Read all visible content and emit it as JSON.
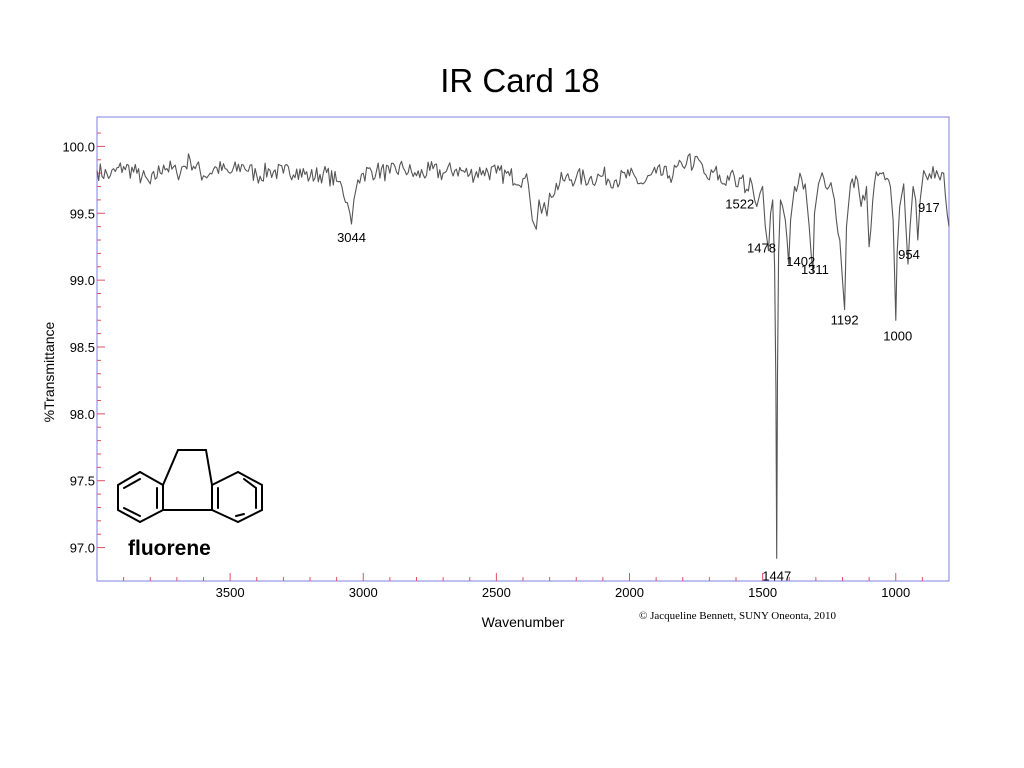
{
  "slide": {
    "title": "IR Card 18",
    "compound": "fluorene",
    "copyright": "© Jacqueline Bennett, SUNY Oneonta, 2010"
  },
  "colors": {
    "frame": "#7f7fe0",
    "tick": "#e05060",
    "trace": "#555555",
    "structure": "#000000"
  },
  "chart_data": {
    "type": "line",
    "title": "",
    "xlabel": "Wavenumber",
    "ylabel": "%Transmittance",
    "xlim": [
      4000,
      800
    ],
    "ylim": [
      96.75,
      100.22
    ],
    "x_reversed": true,
    "grid": false,
    "legend": "none",
    "xticks": [
      3500,
      3000,
      2500,
      2000,
      1500,
      1000
    ],
    "yticks": [
      100.0,
      99.5,
      99.0,
      98.5,
      98.0,
      97.5,
      97.0
    ],
    "ytick_labels": [
      "100.0",
      "99.5",
      "99.0",
      "98.5",
      "98.0",
      "97.5",
      "97.0"
    ],
    "series": [
      {
        "x": [
          4000,
          3950,
          3900,
          3850,
          3800,
          3750,
          3700,
          3650,
          3600,
          3550,
          3500,
          3450,
          3400,
          3350,
          3300,
          3250,
          3200,
          3150,
          3100,
          3080,
          3060,
          3050,
          3044,
          3035,
          3020,
          3000,
          2950,
          2900,
          2850,
          2800,
          2750,
          2700,
          2650,
          2600,
          2550,
          2500,
          2450,
          2400,
          2380,
          2365,
          2350,
          2340,
          2330,
          2320,
          2310,
          2300,
          2250,
          2200,
          2150,
          2100,
          2050,
          2000,
          1950,
          1900,
          1850,
          1800,
          1780,
          1760,
          1740,
          1720,
          1700,
          1680,
          1650,
          1620,
          1600,
          1580,
          1560,
          1540,
          1530,
          1522,
          1510,
          1500,
          1490,
          1478,
          1470,
          1462,
          1455,
          1450,
          1447,
          1444,
          1440,
          1433,
          1425,
          1415,
          1408,
          1402,
          1395,
          1380,
          1360,
          1340,
          1325,
          1318,
          1311,
          1305,
          1290,
          1270,
          1250,
          1230,
          1210,
          1200,
          1192,
          1185,
          1170,
          1150,
          1130,
          1110,
          1100,
          1080,
          1060,
          1040,
          1020,
          1010,
          1005,
          1000,
          995,
          985,
          970,
          962,
          954,
          946,
          935,
          925,
          917,
          908,
          895,
          880,
          860,
          840,
          820,
          800
        ],
        "y": [
          99.82,
          99.78,
          99.85,
          99.8,
          99.72,
          99.86,
          99.8,
          99.9,
          99.78,
          99.84,
          99.8,
          99.86,
          99.78,
          99.82,
          99.8,
          99.83,
          99.77,
          99.8,
          99.74,
          99.7,
          99.58,
          99.5,
          99.42,
          99.6,
          99.75,
          99.8,
          99.82,
          99.8,
          99.84,
          99.78,
          99.82,
          99.8,
          99.83,
          99.79,
          99.82,
          99.8,
          99.78,
          99.76,
          99.72,
          99.45,
          99.38,
          99.6,
          99.5,
          99.58,
          99.48,
          99.65,
          99.75,
          99.77,
          99.76,
          99.78,
          99.75,
          99.78,
          99.72,
          99.8,
          99.78,
          99.85,
          99.93,
          99.85,
          99.9,
          99.8,
          99.75,
          99.82,
          99.72,
          99.8,
          99.7,
          99.76,
          99.68,
          99.72,
          99.6,
          99.55,
          99.65,
          99.7,
          99.4,
          99.22,
          99.5,
          99.6,
          99.1,
          98.2,
          96.92,
          98.3,
          99.2,
          99.6,
          99.55,
          99.45,
          99.3,
          99.12,
          99.45,
          99.7,
          99.8,
          99.72,
          99.4,
          99.2,
          99.06,
          99.5,
          99.72,
          99.76,
          99.7,
          99.6,
          99.3,
          99.0,
          98.78,
          99.4,
          99.72,
          99.78,
          99.55,
          99.7,
          99.25,
          99.72,
          99.8,
          99.75,
          99.7,
          99.45,
          99.1,
          98.7,
          99.2,
          99.55,
          99.72,
          99.4,
          99.12,
          99.4,
          99.7,
          99.6,
          99.3,
          99.6,
          99.82,
          99.75,
          99.85,
          99.78,
          99.8,
          99.4
        ]
      }
    ],
    "peak_labels": [
      {
        "x": 3044,
        "y": 99.42,
        "label": "3044"
      },
      {
        "x": 1522,
        "y": 99.55,
        "label": "1522"
      },
      {
        "x": 1478,
        "y": 99.22,
        "label": "1478"
      },
      {
        "x": 1447,
        "y": 96.92,
        "label": "1447"
      },
      {
        "x": 1402,
        "y": 99.12,
        "label": "1402"
      },
      {
        "x": 1311,
        "y": 99.06,
        "label": "1311"
      },
      {
        "x": 1192,
        "y": 98.78,
        "label": "1192"
      },
      {
        "x": 1000,
        "y": 98.7,
        "label": "1000"
      },
      {
        "x": 954,
        "y": 99.12,
        "label": "954"
      },
      {
        "x": 917,
        "y": 99.3,
        "label": "917"
      }
    ]
  }
}
